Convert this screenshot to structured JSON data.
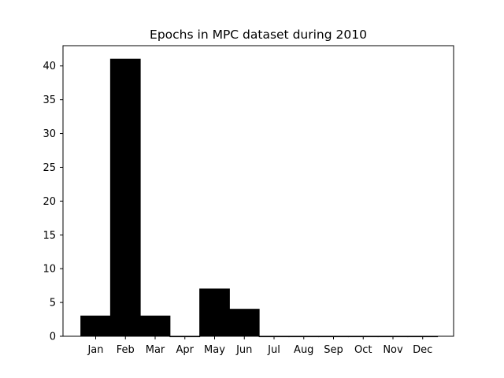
{
  "chart_data": {
    "type": "bar",
    "title": "Epochs in MPC dataset during 2010",
    "xlabel": "",
    "ylabel": "",
    "categories": [
      "Jan",
      "Feb",
      "Mar",
      "Apr",
      "May",
      "Jun",
      "Jul",
      "Aug",
      "Sep",
      "Oct",
      "Nov",
      "Dec"
    ],
    "values": [
      3,
      41,
      3,
      0,
      7,
      4,
      0,
      0,
      0,
      0,
      0,
      0
    ],
    "ylim": [
      0,
      43
    ],
    "yticks": [
      0,
      5,
      10,
      15,
      20,
      25,
      30,
      35,
      40
    ],
    "bar_color": "#000000",
    "grid": false,
    "legend": "none"
  }
}
